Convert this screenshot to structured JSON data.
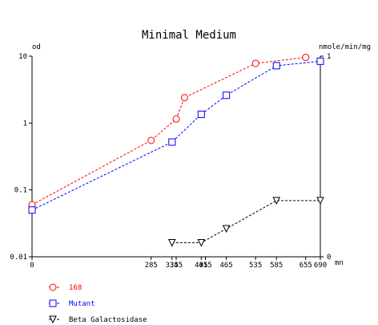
{
  "chart_data": {
    "type": "line",
    "title": "Minimal Medium",
    "y_left_label": "od",
    "y_right_label": "nmole/min/mg",
    "x_unit_label": "mn",
    "x_range": [
      0,
      690
    ],
    "x_ticks": [
      0,
      285,
      335,
      345,
      405,
      415,
      465,
      535,
      585,
      655,
      690
    ],
    "y_left_scale": "log",
    "y_left_range": [
      0.01,
      10
    ],
    "y_left_ticks": [
      {
        "value": 10,
        "label": "10"
      },
      {
        "value": 1,
        "label": "1"
      },
      {
        "value": 0.1,
        "label": "0.1"
      },
      {
        "value": 0.01,
        "label": "0.01"
      }
    ],
    "y_right_range": [
      0,
      1
    ],
    "y_right_ticks": [
      {
        "value": 1,
        "label": "1"
      },
      {
        "value": 0,
        "label": "0"
      }
    ],
    "grid": false,
    "legend_position": "bottom-left",
    "series": [
      {
        "name": "168",
        "axis": "left",
        "marker": "circle",
        "color": "#ff0000",
        "x": [
          0,
          285,
          345,
          365,
          535,
          655
        ],
        "y": [
          0.06,
          0.55,
          1.15,
          2.4,
          7.8,
          9.6
        ]
      },
      {
        "name": "Mutant",
        "axis": "left",
        "marker": "square",
        "color": "#0000ff",
        "x": [
          0,
          335,
          405,
          465,
          585,
          690
        ],
        "y": [
          0.05,
          0.52,
          1.35,
          2.6,
          7.2,
          8.4
        ]
      },
      {
        "name": "Beta Galactosidase",
        "axis": "right",
        "marker": "triangle-down",
        "color": "#000000",
        "x": [
          335,
          405,
          465,
          585,
          690
        ],
        "y": [
          0.07,
          0.07,
          0.14,
          0.28,
          0.28
        ]
      }
    ]
  }
}
